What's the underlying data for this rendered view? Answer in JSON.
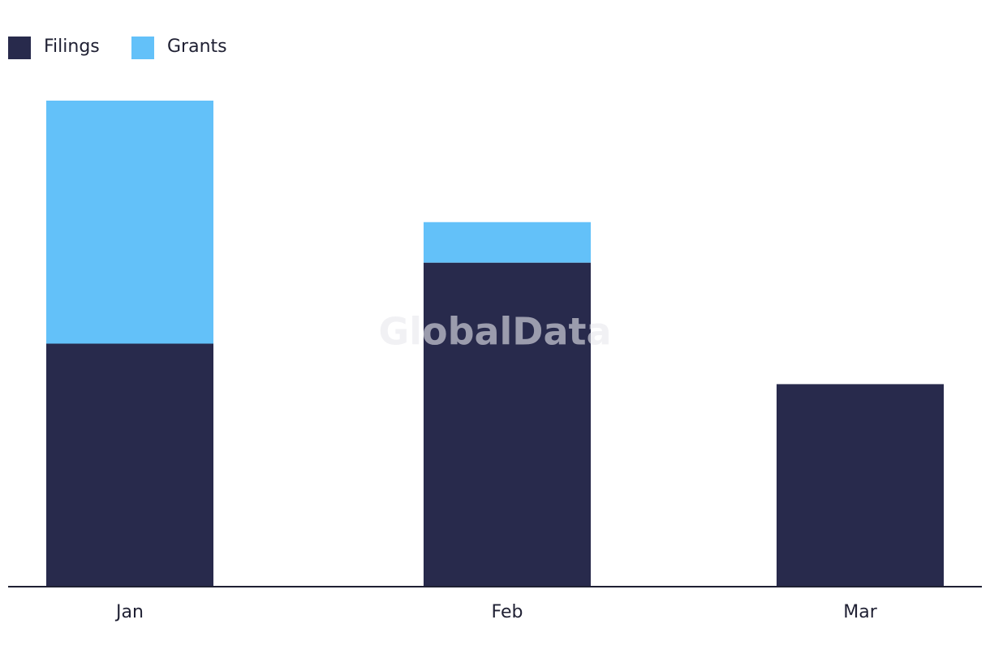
{
  "chart_data": {
    "type": "stacked-bar",
    "watermark": "GlobalData",
    "categories": [
      "Jan",
      "Feb",
      "Mar"
    ],
    "series": [
      {
        "name": "Filings",
        "color": "#282a4c",
        "values": [
          6,
          8,
          5
        ]
      },
      {
        "name": "Grants",
        "color": "#63c1f9",
        "values": [
          6,
          1,
          0
        ]
      }
    ],
    "legend": "top-left"
  }
}
